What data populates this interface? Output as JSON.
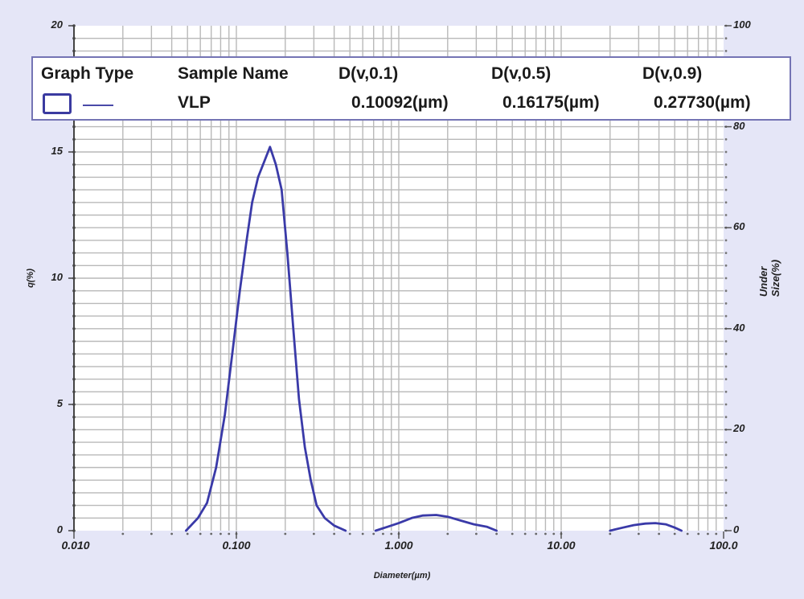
{
  "chart_data": {
    "type": "line",
    "title": "",
    "xlabel": "Diameter(µm)",
    "ylabel": "q(%)",
    "ylabel_right": "Under Size(%)",
    "x_scale": "log",
    "xlim": [
      0.01,
      100.0
    ],
    "ylim": [
      0,
      20
    ],
    "ylim_right": [
      0,
      100
    ],
    "grid": true,
    "x_ticks": [
      "0.010",
      "0.100",
      "1.000",
      "10.00",
      "100.0"
    ],
    "y_ticks_left": [
      "0",
      "5",
      "10",
      "15",
      "20"
    ],
    "y_ticks_right": [
      "0",
      "20",
      "40",
      "60",
      "80",
      "100"
    ],
    "legend": {
      "position": "top",
      "headers": [
        "Graph Type",
        "Sample Name",
        "D(v,0.1)",
        "D(v,0.5)",
        "D(v,0.9)"
      ],
      "rows": [
        {
          "sample": "VLP",
          "d10": "0.10092(µm)",
          "d50": "0.16175(µm)",
          "d90": "0.27730(µm)"
        }
      ]
    },
    "series": [
      {
        "name": "VLP",
        "color": "#3a3aa8",
        "segments": [
          {
            "x": [
              0.049,
              0.058,
              0.066,
              0.075,
              0.085,
              0.096,
              0.105,
              0.115,
              0.125,
              0.136,
              0.148,
              0.161,
              0.175,
              0.19,
              0.206,
              0.224,
              0.243,
              0.264,
              0.287,
              0.312,
              0.35,
              0.4,
              0.47
            ],
            "y": [
              0.0,
              0.5,
              1.1,
              2.5,
              4.6,
              7.4,
              9.5,
              11.4,
              13.0,
              14.0,
              14.6,
              15.2,
              14.5,
              13.5,
              11.0,
              8.0,
              5.2,
              3.3,
              2.0,
              1.0,
              0.5,
              0.2,
              0.0
            ]
          },
          {
            "x": [
              0.72,
              0.85,
              1.0,
              1.2,
              1.4,
              1.7,
              2.0,
              2.4,
              2.9,
              3.5,
              4.0
            ],
            "y": [
              0.0,
              0.15,
              0.3,
              0.5,
              0.6,
              0.62,
              0.55,
              0.4,
              0.25,
              0.15,
              0.0
            ]
          },
          {
            "x": [
              20.0,
              24.0,
              28.0,
              33.0,
              38.0,
              44.0,
              50.0,
              55.0
            ],
            "y": [
              0.0,
              0.12,
              0.22,
              0.28,
              0.3,
              0.25,
              0.12,
              0.0
            ]
          }
        ]
      }
    ]
  },
  "legend": {
    "headers": {
      "graph_type": "Graph Type",
      "sample_name": "Sample Name",
      "d10": "D(v,0.1)",
      "d50": "D(v,0.5)",
      "d90": "D(v,0.9)"
    },
    "row": {
      "sample_name": "VLP",
      "d10": "0.10092(µm)",
      "d50": "0.16175(µm)",
      "d90": "0.27730(µm)"
    }
  },
  "axes": {
    "x_title": "Diameter(µm)",
    "y_left_title": "q(%)",
    "y_right_title": "Under Size(%)",
    "x_ticks": [
      "0.010",
      "0.100",
      "1.000",
      "10.00",
      "100.0"
    ],
    "y_left_ticks": [
      "0",
      "5",
      "10",
      "15",
      "20"
    ],
    "y_right_ticks": [
      "0",
      "20",
      "40",
      "60",
      "80",
      "100"
    ]
  },
  "colors": {
    "background": "#e5e6f7",
    "plot_bg": "#ffffff",
    "grid": "#b9b9b9",
    "curve": "#3a3aa8",
    "legend_border": "#7474b4"
  }
}
